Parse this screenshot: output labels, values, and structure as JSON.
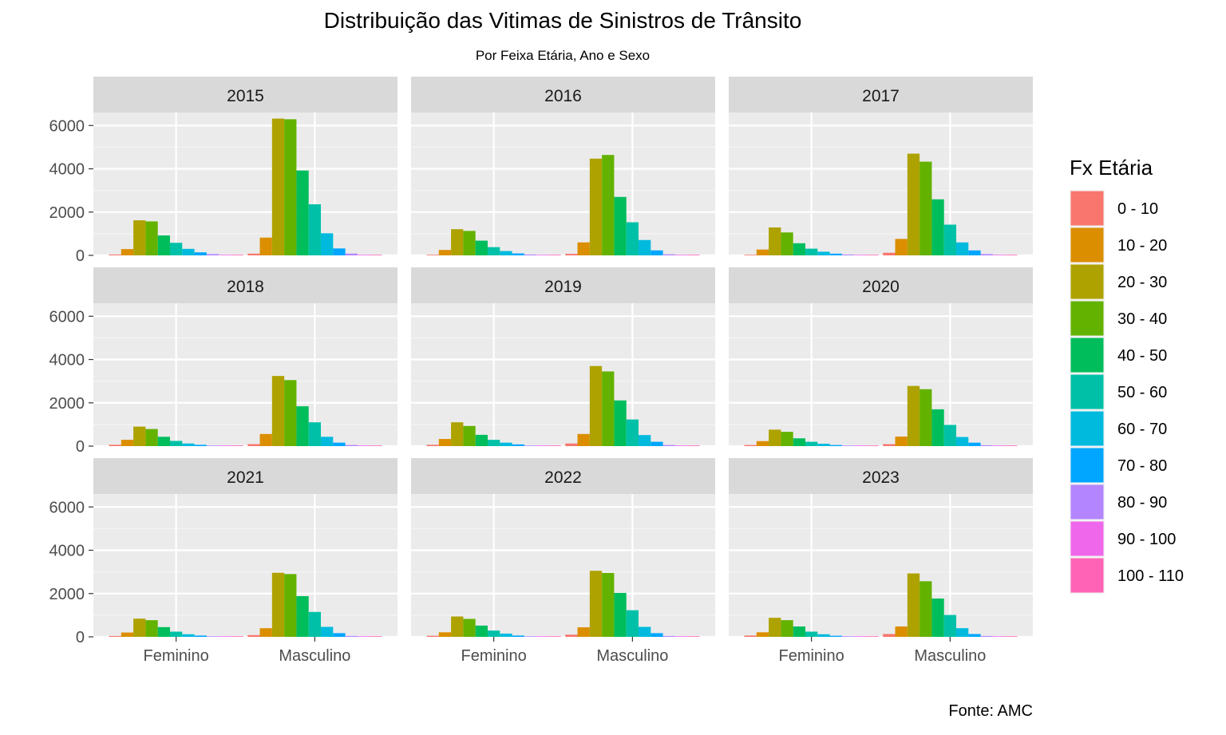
{
  "chart_data": {
    "type": "bar",
    "title": "Distribuição das Vitimas de Sinistros de Trânsito",
    "subtitle": "Por Feixa Etária, Ano e Sexo",
    "caption": "Fonte: AMC",
    "xlabel": "",
    "ylabel": "",
    "categories": [
      "Feminino",
      "Masculino"
    ],
    "yticks": [
      "0",
      "2000",
      "4000",
      "6000"
    ],
    "ylim": [
      0,
      6600
    ],
    "grid": true,
    "legend": {
      "title": "Fx Etária",
      "placement": "right",
      "entries": [
        {
          "name": "0 - 10",
          "color": "#F8766D"
        },
        {
          "name": "10 - 20",
          "color": "#DB8E00"
        },
        {
          "name": "20 - 30",
          "color": "#AEA200"
        },
        {
          "name": "30 - 40",
          "color": "#64B200"
        },
        {
          "name": "40 - 50",
          "color": "#00BD5C"
        },
        {
          "name": "50 - 60",
          "color": "#00C1A7"
        },
        {
          "name": "60 - 70",
          "color": "#00BADE"
        },
        {
          "name": "70 - 80",
          "color": "#00A6FF"
        },
        {
          "name": "80 - 90",
          "color": "#B385FF"
        },
        {
          "name": "90 - 100",
          "color": "#EF67EB"
        },
        {
          "name": "100 - 110",
          "color": "#FF63B6"
        }
      ]
    },
    "panels": [
      {
        "year": "2015",
        "values": {
          "Feminino": [
            40,
            290,
            1620,
            1570,
            920,
            580,
            300,
            140,
            60,
            20,
            5
          ],
          "Masculino": [
            80,
            820,
            6320,
            6290,
            3920,
            2360,
            1020,
            320,
            80,
            15,
            3
          ]
        }
      },
      {
        "year": "2016",
        "values": {
          "Feminino": [
            30,
            250,
            1210,
            1130,
            680,
            380,
            200,
            90,
            40,
            10,
            3
          ],
          "Masculino": [
            70,
            600,
            4470,
            4640,
            2700,
            1530,
            710,
            230,
            50,
            10,
            2
          ]
        }
      },
      {
        "year": "2017",
        "values": {
          "Feminino": [
            30,
            270,
            1290,
            1060,
            560,
            310,
            170,
            80,
            40,
            10,
            3
          ],
          "Masculino": [
            120,
            760,
            4700,
            4330,
            2590,
            1420,
            600,
            230,
            60,
            10,
            2
          ]
        }
      },
      {
        "year": "2018",
        "values": {
          "Feminino": [
            60,
            290,
            900,
            790,
            430,
            240,
            120,
            60,
            30,
            10,
            3
          ],
          "Masculino": [
            90,
            560,
            3240,
            3050,
            1840,
            1100,
            430,
            160,
            50,
            10,
            2
          ]
        }
      },
      {
        "year": "2019",
        "values": {
          "Feminino": [
            60,
            330,
            1100,
            930,
            520,
            290,
            160,
            80,
            30,
            10,
            3
          ],
          "Masculino": [
            120,
            560,
            3700,
            3450,
            2110,
            1230,
            510,
            200,
            50,
            10,
            2
          ]
        }
      },
      {
        "year": "2020",
        "values": {
          "Feminino": [
            50,
            230,
            760,
            660,
            360,
            200,
            110,
            50,
            20,
            8,
            2
          ],
          "Masculino": [
            90,
            440,
            2780,
            2630,
            1700,
            980,
            420,
            160,
            40,
            8,
            2
          ]
        }
      },
      {
        "year": "2021",
        "values": {
          "Feminino": [
            40,
            200,
            840,
            770,
            450,
            240,
            120,
            60,
            20,
            8,
            2
          ],
          "Masculino": [
            80,
            400,
            2960,
            2900,
            1880,
            1150,
            460,
            170,
            40,
            8,
            2
          ]
        }
      },
      {
        "year": "2022",
        "values": {
          "Feminino": [
            50,
            210,
            940,
            830,
            520,
            290,
            150,
            60,
            20,
            8,
            2
          ],
          "Masculino": [
            100,
            440,
            3050,
            2950,
            2030,
            1230,
            460,
            170,
            40,
            8,
            2
          ]
        }
      },
      {
        "year": "2023",
        "values": {
          "Feminino": [
            60,
            210,
            880,
            770,
            480,
            240,
            120,
            50,
            20,
            8,
            2
          ],
          "Masculino": [
            130,
            480,
            2930,
            2570,
            1770,
            1010,
            400,
            130,
            40,
            8,
            2
          ]
        }
      }
    ]
  }
}
